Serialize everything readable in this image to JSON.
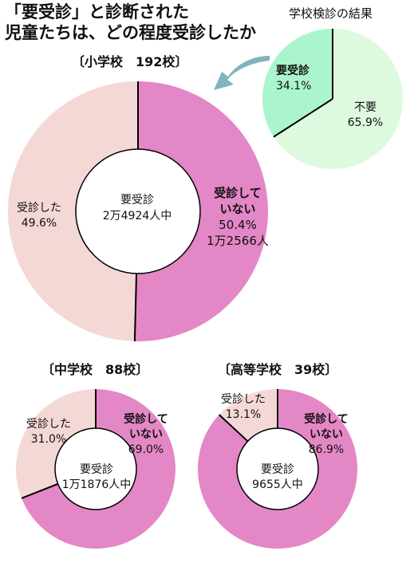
{
  "headline": {
    "line1": "「要受診」と診断された",
    "line2": "児童たちは、どの程度受診したか"
  },
  "colors": {
    "pink": "#e487c6",
    "light_pink": "#f4d8d6",
    "green": "#aaf5cd",
    "light_green": "#ddfadf",
    "arrow": "#7eb5be",
    "stroke": "#000000"
  },
  "chart_data": [
    {
      "type": "pie",
      "title": "学校検診の結果",
      "categories": [
        "要受診",
        "不要"
      ],
      "values": [
        34.1,
        65.9
      ],
      "labels": [
        {
          "text": "要受診",
          "pct": "34.1%"
        },
        {
          "text": "不要",
          "pct": "65.9%"
        }
      ]
    },
    {
      "type": "pie",
      "title": "〔小学校　192校〕",
      "center_label": {
        "line1": "要受診",
        "line2": "2万4924人中"
      },
      "categories": [
        "受診していない",
        "受診した"
      ],
      "values": [
        50.4,
        49.6
      ],
      "labels": [
        {
          "line1": "受診して",
          "line2": "いない",
          "pct": "50.4%",
          "count": "1万2566人"
        },
        {
          "line1": "受診した",
          "pct": "49.6%"
        }
      ]
    },
    {
      "type": "pie",
      "title": "〔中学校　88校〕",
      "center_label": {
        "line1": "要受診",
        "line2": "1万1876人中"
      },
      "categories": [
        "受診していない",
        "受診した"
      ],
      "values": [
        69.0,
        31.0
      ],
      "labels": [
        {
          "line1": "受診して",
          "line2": "いない",
          "pct": "69.0%"
        },
        {
          "line1": "受診した",
          "pct": "31.0%"
        }
      ]
    },
    {
      "type": "pie",
      "title": "〔高等学校　39校〕",
      "center_label": {
        "line1": "要受診",
        "line2": "9655人中"
      },
      "categories": [
        "受診していない",
        "受診した"
      ],
      "values": [
        86.9,
        13.1
      ],
      "labels": [
        {
          "line1": "受診して",
          "line2": "いない",
          "pct": "86.9%"
        },
        {
          "line1": "受診した",
          "pct": "13.1%"
        }
      ]
    }
  ]
}
